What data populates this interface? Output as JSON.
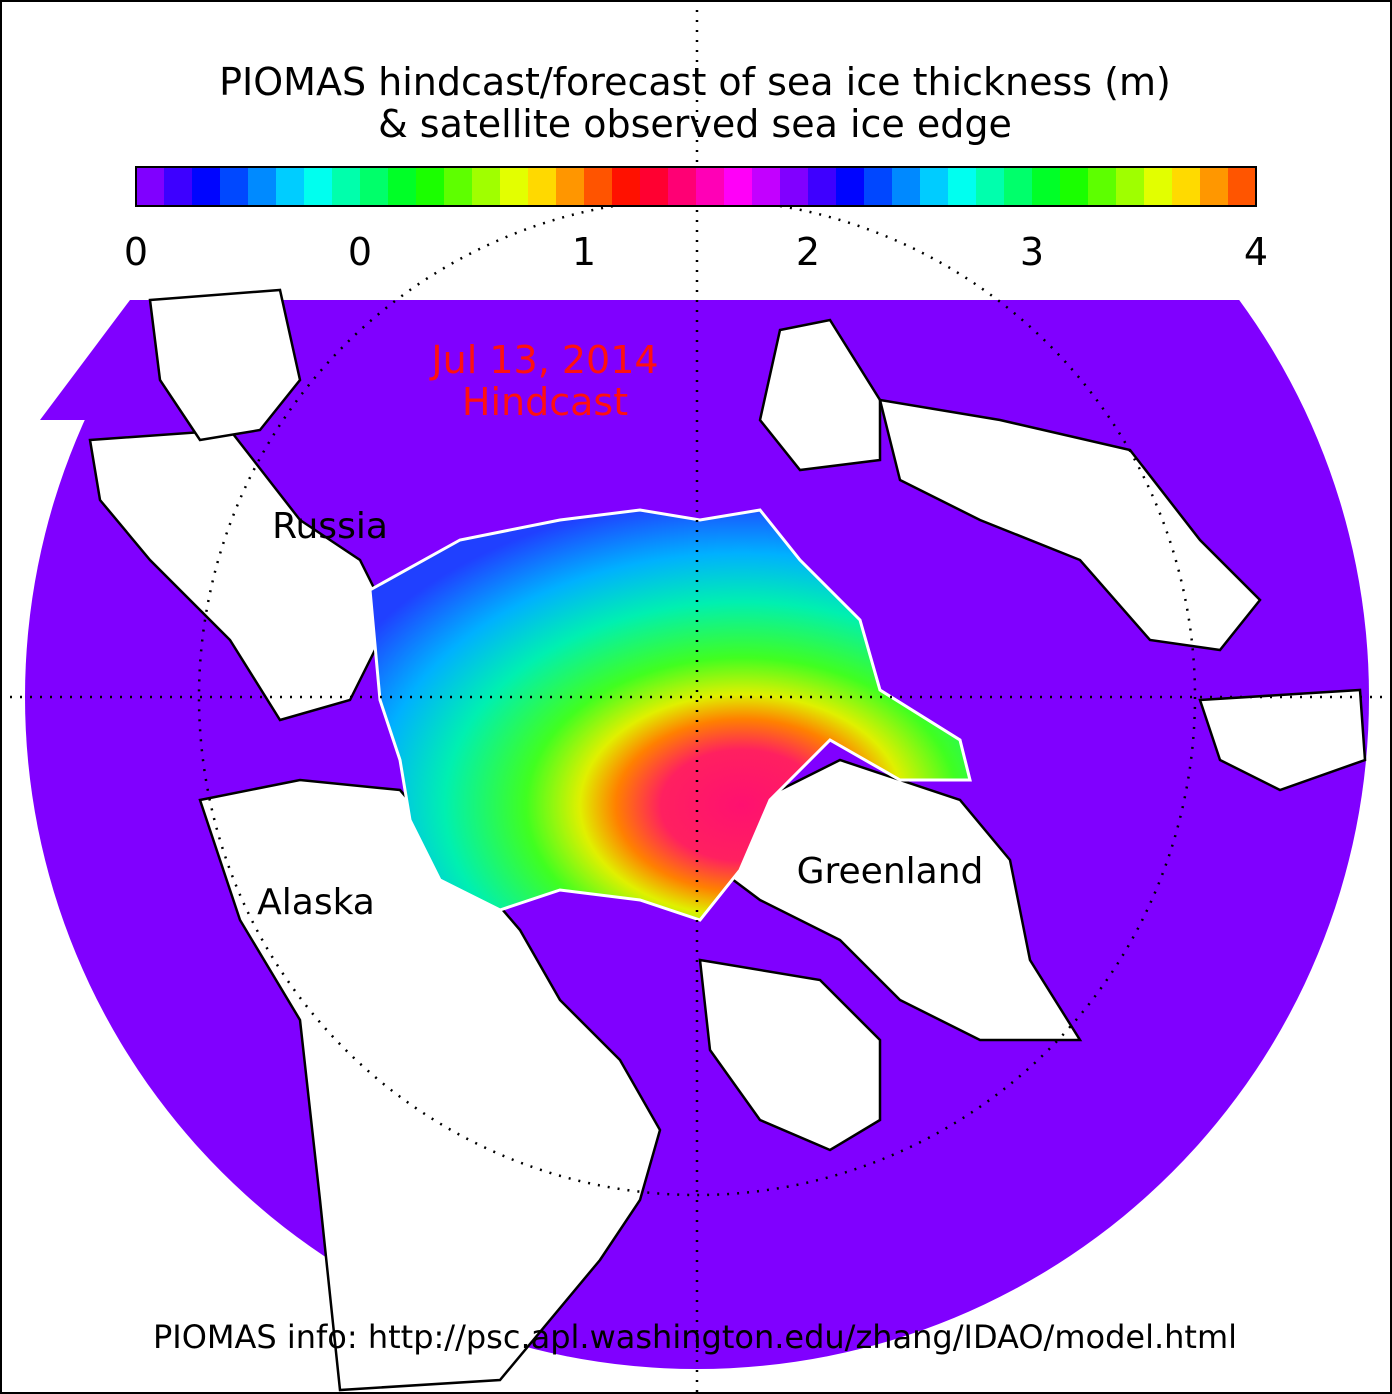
{
  "header": {
    "title_line1": "PIOMAS hindcast/forecast of sea ice thickness (m)",
    "title_line2": "& satellite observed sea ice edge"
  },
  "colorbar": {
    "tick_labels": [
      "0",
      "0",
      "1",
      "2",
      "3",
      "4"
    ]
  },
  "stamp": {
    "date": "Jul 13, 2014",
    "kind": "Hindcast"
  },
  "regions": {
    "russia": "Russia",
    "alaska": "Alaska",
    "greenland": "Greenland"
  },
  "footer": "PIOMAS info: http://psc.apl.washington.edu/zhang/IDAO/model.html"
}
